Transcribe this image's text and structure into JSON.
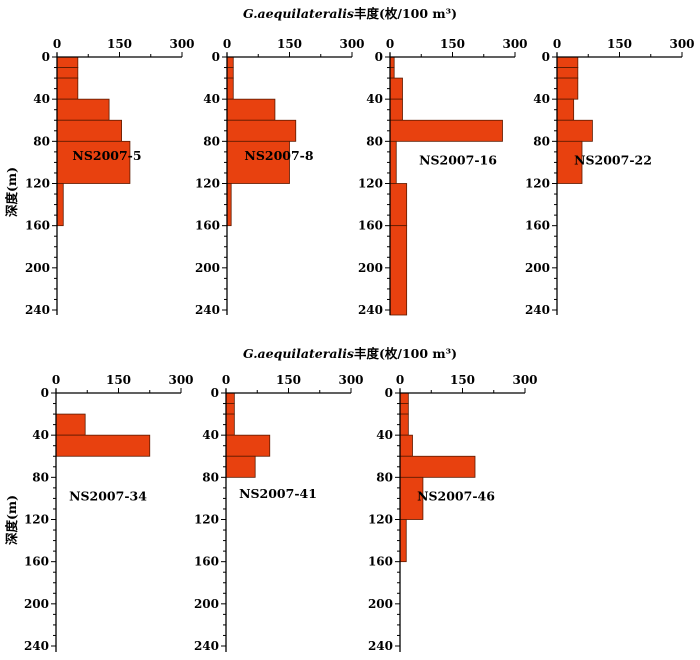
{
  "chart_data": {
    "type": "bar",
    "orientation": "horizontal-step-profile",
    "title_prefix_italic": "G.aequilateralis",
    "title_suffix": "丰度(枚/100 m³)",
    "ylabel": "深度(m)",
    "xlim": [
      0,
      300
    ],
    "xticks": [
      "0",
      "150",
      "300"
    ],
    "ylim": [
      0,
      250
    ],
    "yticks": [
      "0",
      "40",
      "80",
      "120",
      "160",
      "200",
      "240"
    ],
    "bar_color": "#e8410f",
    "depth_bins": [
      [
        0,
        10
      ],
      [
        10,
        20
      ],
      [
        20,
        40
      ],
      [
        40,
        60
      ],
      [
        60,
        80
      ],
      [
        80,
        120
      ],
      [
        120,
        160
      ],
      [
        160,
        250
      ]
    ],
    "panels": [
      {
        "name": "NS2007-5",
        "values": [
          50,
          50,
          50,
          125,
          155,
          175,
          15,
          null
        ]
      },
      {
        "name": "NS2007-8",
        "values": [
          15,
          15,
          15,
          115,
          165,
          150,
          10,
          null
        ]
      },
      {
        "name": "NS2007-16",
        "values": [
          10,
          10,
          30,
          30,
          270,
          15,
          40,
          40
        ]
      },
      {
        "name": "NS2007-22",
        "values": [
          50,
          50,
          50,
          40,
          85,
          60,
          null,
          null
        ]
      },
      {
        "name": "NS2007-34",
        "values": [
          null,
          null,
          70,
          225,
          null,
          null,
          null,
          null
        ]
      },
      {
        "name": "NS2007-41",
        "values": [
          20,
          20,
          20,
          105,
          70,
          null,
          null,
          null
        ]
      },
      {
        "name": "NS2007-46",
        "values": [
          20,
          20,
          20,
          30,
          180,
          55,
          15,
          null
        ]
      }
    ]
  }
}
